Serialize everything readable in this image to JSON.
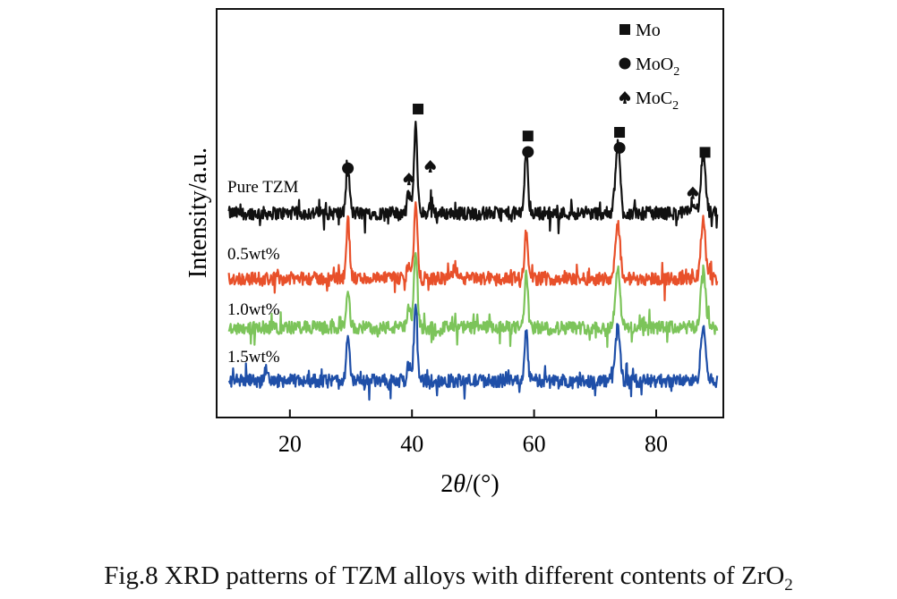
{
  "chart_data": {
    "type": "line",
    "title": "",
    "xlabel_prefix": "2",
    "xlabel_theta": "θ",
    "xlabel_suffix": "/(°)",
    "ylabel": "Intensity/a.u.",
    "xlim": [
      8,
      91
    ],
    "ylim": [
      0,
      100
    ],
    "xticks": [
      20,
      40,
      60,
      80
    ],
    "xtick_labels": [
      "20",
      "40",
      "60",
      "80"
    ],
    "yticks": [],
    "grid": false,
    "x_range_measured": [
      10,
      90
    ],
    "series": [
      {
        "name": "Pure TZM",
        "color": "#111111",
        "offset": 50,
        "peaks": [
          [
            29.5,
            11
          ],
          [
            39.5,
            5
          ],
          [
            40.6,
            21
          ],
          [
            43.2,
            3
          ],
          [
            58.7,
            15
          ],
          [
            73.7,
            17
          ],
          [
            86.0,
            3
          ],
          [
            87.7,
            14
          ]
        ]
      },
      {
        "name": "0.5wt%",
        "color": "#e8502a",
        "offset": 34,
        "peaks": [
          [
            29.5,
            14
          ],
          [
            39.5,
            4
          ],
          [
            40.6,
            18
          ],
          [
            47.0,
            3
          ],
          [
            58.7,
            11
          ],
          [
            73.7,
            14
          ],
          [
            87.7,
            14
          ]
        ]
      },
      {
        "name": "1.0wt%",
        "color": "#7cc45a",
        "offset": 22,
        "peaks": [
          [
            29.5,
            10
          ],
          [
            39.5,
            4
          ],
          [
            40.6,
            19
          ],
          [
            58.7,
            13
          ],
          [
            73.7,
            15
          ],
          [
            87.7,
            15
          ]
        ]
      },
      {
        "name": "1.5wt%",
        "color": "#1f4fa8",
        "offset": 9,
        "peaks": [
          [
            16.0,
            2.5
          ],
          [
            29.5,
            10
          ],
          [
            39.5,
            4
          ],
          [
            40.6,
            19
          ],
          [
            58.7,
            12
          ],
          [
            73.7,
            13
          ],
          [
            87.7,
            14
          ]
        ]
      }
    ],
    "phase_markers": [
      {
        "phase": "Mo",
        "shape": "square",
        "positions": [
          [
            41,
            75.5
          ],
          [
            59,
            68.9
          ],
          [
            74,
            69.8
          ],
          [
            88,
            64.9
          ]
        ]
      },
      {
        "phase": "MoO2",
        "shape": "circle",
        "positions": [
          [
            29.5,
            61
          ],
          [
            59,
            65
          ],
          [
            74,
            66
          ]
        ]
      },
      {
        "phase": "MoC2",
        "shape": "spade",
        "positions": [
          [
            39.5,
            58.4
          ],
          [
            43,
            61.5
          ],
          [
            86,
            55
          ]
        ]
      }
    ],
    "legend": {
      "placement": "top-right",
      "entries": [
        {
          "shape": "square",
          "base": "Mo",
          "sub": ""
        },
        {
          "shape": "circle",
          "base": "MoO",
          "sub": "2"
        },
        {
          "shape": "spade",
          "base": "MoC",
          "sub": "2"
        }
      ]
    }
  },
  "caption": {
    "text": "Fig.8  XRD patterns of TZM alloys with different contents of ZrO",
    "sub": "2"
  }
}
